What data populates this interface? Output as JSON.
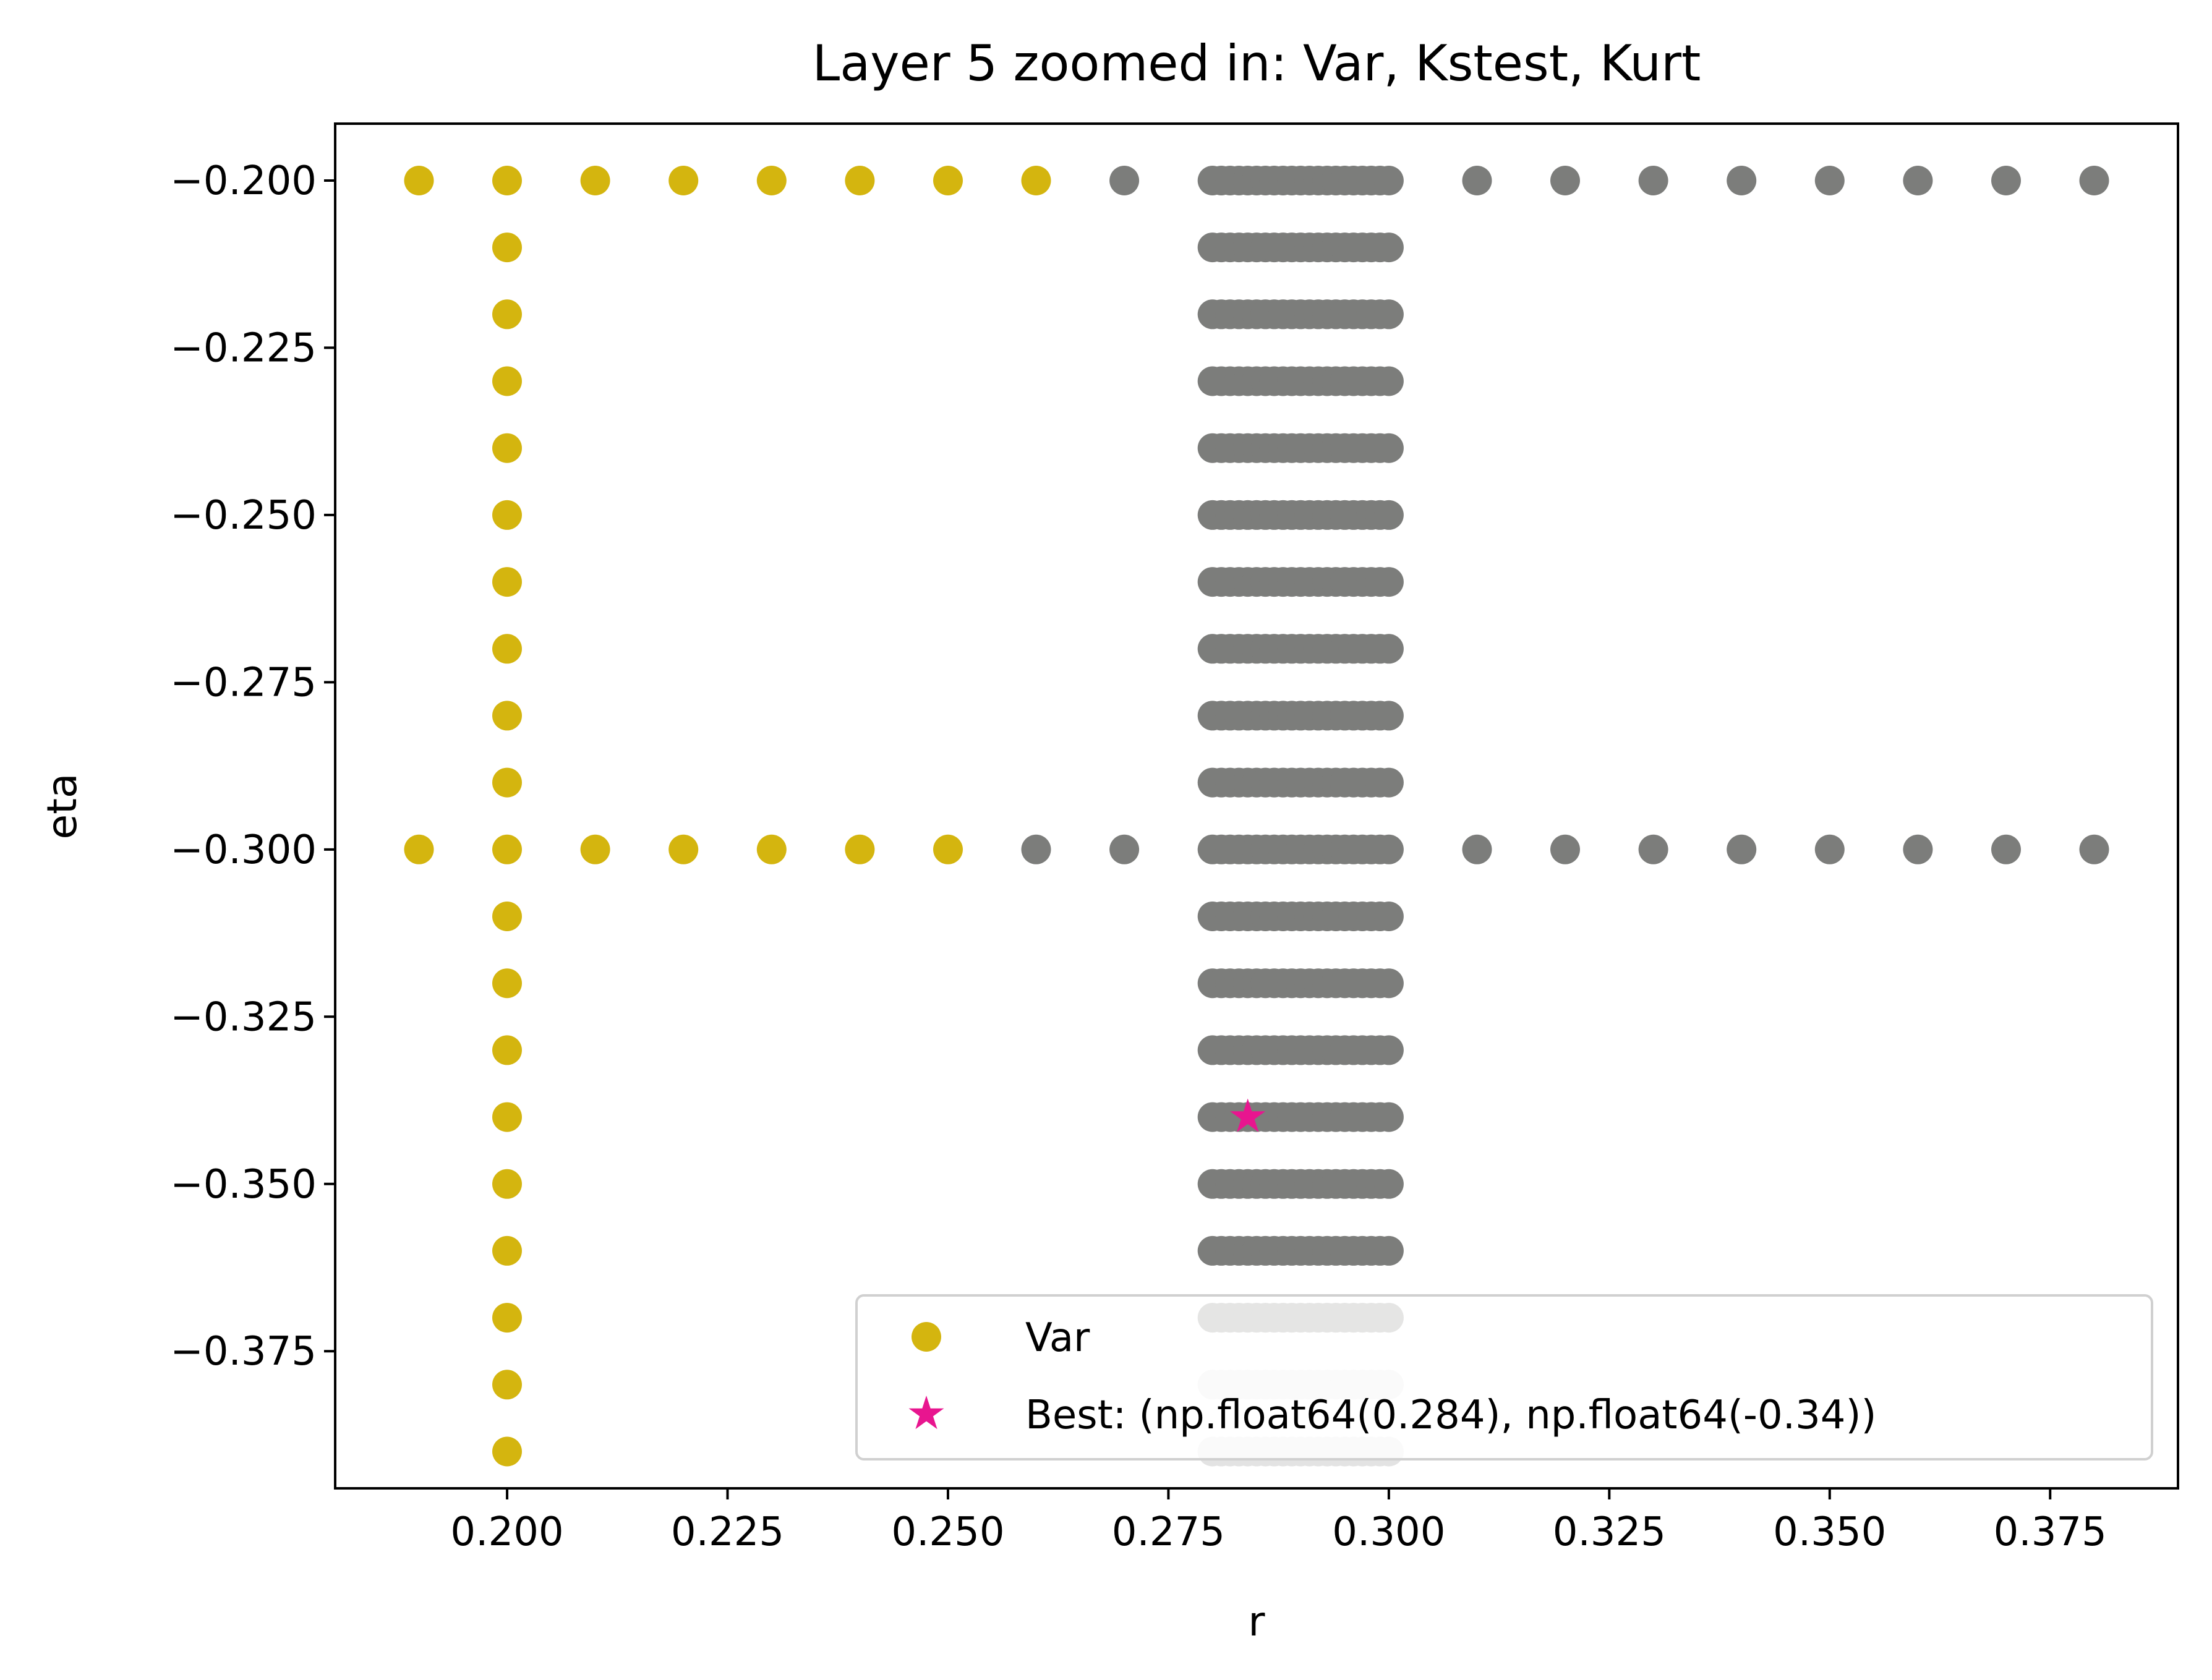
{
  "chart_data": {
    "type": "scatter",
    "title": "Layer 5 zoomed in: Var, Kstest, Kurt",
    "xlabel": "r",
    "ylabel": "eta",
    "xlim": [
      0.1805,
      0.3895
    ],
    "ylim": [
      -0.3955,
      -0.1915
    ],
    "grid": false,
    "legend_position": "bottom-right",
    "xticks": [
      0.2,
      0.225,
      0.25,
      0.275,
      0.3,
      0.325,
      0.35,
      0.375
    ],
    "xtick_labels": [
      "0.200",
      "0.225",
      "0.250",
      "0.275",
      "0.300",
      "0.325",
      "0.350",
      "0.375"
    ],
    "yticks": [
      -0.2,
      -0.225,
      -0.25,
      -0.275,
      -0.3,
      -0.325,
      -0.35,
      -0.375
    ],
    "ytick_labels": [
      "−0.200",
      "−0.225",
      "−0.250",
      "−0.275",
      "−0.300",
      "−0.325",
      "−0.350",
      "−0.375"
    ],
    "colors": {
      "var": "#d4b50f",
      "gray": "#7c7d7b",
      "light_gray": "#e3e3e3",
      "best": "#e8158f"
    },
    "series": [
      {
        "name": "Var",
        "color": "#d4b50f",
        "points": [
          [
            0.19,
            -0.2
          ],
          [
            0.2,
            -0.2
          ],
          [
            0.21,
            -0.2
          ],
          [
            0.22,
            -0.2
          ],
          [
            0.23,
            -0.2
          ],
          [
            0.24,
            -0.2
          ],
          [
            0.25,
            -0.2
          ],
          [
            0.26,
            -0.2
          ],
          [
            0.2,
            -0.21
          ],
          [
            0.2,
            -0.22
          ],
          [
            0.2,
            -0.23
          ],
          [
            0.2,
            -0.24
          ],
          [
            0.2,
            -0.25
          ],
          [
            0.2,
            -0.26
          ],
          [
            0.2,
            -0.27
          ],
          [
            0.2,
            -0.28
          ],
          [
            0.2,
            -0.29
          ],
          [
            0.19,
            -0.3
          ],
          [
            0.2,
            -0.3
          ],
          [
            0.21,
            -0.3
          ],
          [
            0.22,
            -0.3
          ],
          [
            0.23,
            -0.3
          ],
          [
            0.24,
            -0.3
          ],
          [
            0.25,
            -0.3
          ],
          [
            0.2,
            -0.31
          ],
          [
            0.2,
            -0.32
          ],
          [
            0.2,
            -0.33
          ],
          [
            0.2,
            -0.34
          ],
          [
            0.2,
            -0.35
          ],
          [
            0.2,
            -0.36
          ],
          [
            0.2,
            -0.37
          ],
          [
            0.2,
            -0.38
          ],
          [
            0.2,
            -0.39
          ]
        ]
      }
    ],
    "gray_points": [
      [
        0.27,
        -0.2
      ],
      [
        0.31,
        -0.2
      ],
      [
        0.32,
        -0.2
      ],
      [
        0.33,
        -0.2
      ],
      [
        0.34,
        -0.2
      ],
      [
        0.35,
        -0.2
      ],
      [
        0.36,
        -0.2
      ],
      [
        0.37,
        -0.2
      ],
      [
        0.38,
        -0.2
      ],
      [
        0.26,
        -0.3
      ],
      [
        0.27,
        -0.3
      ],
      [
        0.31,
        -0.3
      ],
      [
        0.32,
        -0.3
      ],
      [
        0.33,
        -0.3
      ],
      [
        0.34,
        -0.3
      ],
      [
        0.35,
        -0.3
      ],
      [
        0.36,
        -0.3
      ],
      [
        0.37,
        -0.3
      ],
      [
        0.38,
        -0.3
      ]
    ],
    "dense_band": {
      "x_range": [
        0.28,
        0.3
      ],
      "x_step": 0.001,
      "gray_rows": [
        -0.2,
        -0.21,
        -0.22,
        -0.23,
        -0.24,
        -0.25,
        -0.26,
        -0.27,
        -0.28,
        -0.29,
        -0.3,
        -0.31,
        -0.32,
        -0.33,
        -0.34,
        -0.35,
        -0.36,
        -0.37
      ],
      "light_rows": [
        -0.38,
        -0.39
      ]
    },
    "best": {
      "label": "Best: (np.float64(0.284), np.float64(-0.34))",
      "x": 0.284,
      "y": -0.34,
      "color": "#e8158f"
    },
    "legend": [
      {
        "label": "Var",
        "marker": "circle",
        "color": "#d4b50f"
      },
      {
        "label": "Best: (np.float64(0.284), np.float64(-0.34))",
        "marker": "star",
        "color": "#e8158f"
      }
    ]
  }
}
